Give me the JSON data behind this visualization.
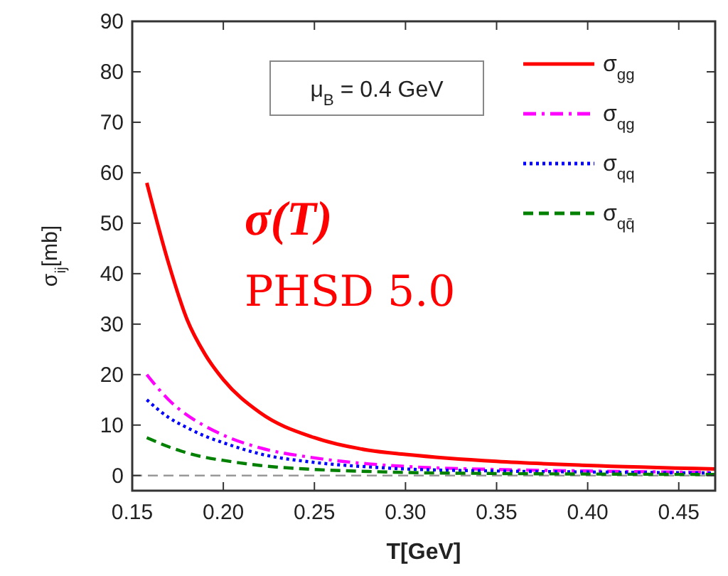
{
  "chart_data": {
    "type": "line",
    "xlabel": "T[GeV]",
    "ylabel": "σ$_{ij}$[mb]",
    "xlim": [
      0.15,
      0.47
    ],
    "ylim": [
      -3,
      90
    ],
    "xticks": [
      {
        "value": 0.15,
        "label": "0.15"
      },
      {
        "value": 0.2,
        "label": "0.20"
      },
      {
        "value": 0.25,
        "label": "0.25"
      },
      {
        "value": 0.3,
        "label": "0.30"
      },
      {
        "value": 0.35,
        "label": "0.35"
      },
      {
        "value": 0.4,
        "label": "0.40"
      },
      {
        "value": 0.45,
        "label": "0.45"
      }
    ],
    "yticks": [
      0,
      10,
      20,
      30,
      40,
      50,
      60,
      70,
      80,
      90
    ],
    "x": [
      0.158,
      0.17,
      0.18,
      0.19,
      0.2,
      0.22,
      0.25,
      0.28,
      0.3,
      0.35,
      0.4,
      0.47
    ],
    "series": [
      {
        "name": "σ$_{gg}$",
        "color": "#ff0000",
        "line_style": "solid",
        "values": [
          58,
          42,
          31,
          24,
          19,
          12.5,
          7.5,
          5,
          4.2,
          2.8,
          2,
          1.3
        ]
      },
      {
        "name": "σ$_{qg}$",
        "color": "#ff00ff",
        "line_style": "dashdot",
        "values": [
          20,
          15,
          12,
          9.8,
          8,
          5.5,
          3.5,
          2.3,
          1.8,
          1.2,
          0.9,
          0.6
        ]
      },
      {
        "name": "σ$_{qq}$",
        "color": "#0000ff",
        "line_style": "dotted",
        "values": [
          15,
          11.5,
          9.5,
          7.8,
          6.5,
          4.3,
          2.6,
          1.7,
          1.3,
          0.9,
          0.7,
          0.5
        ]
      },
      {
        "name": "σ$_{qq̄}$",
        "color": "#008000",
        "line_style": "dashed",
        "values": [
          7.5,
          5.7,
          4.5,
          3.6,
          3,
          2,
          1.2,
          0.8,
          0.6,
          0.4,
          0.3,
          0.2
        ]
      }
    ],
    "ref_lines": [
      {
        "axis": "y",
        "value": 0,
        "color": "#999999",
        "line_style": "dashed"
      }
    ],
    "annotations": [
      "μ$_{B}$ = 0.4 GeV",
      "σ(T)",
      "PHSD 5.0"
    ],
    "legend": "top right",
    "grid": false
  }
}
